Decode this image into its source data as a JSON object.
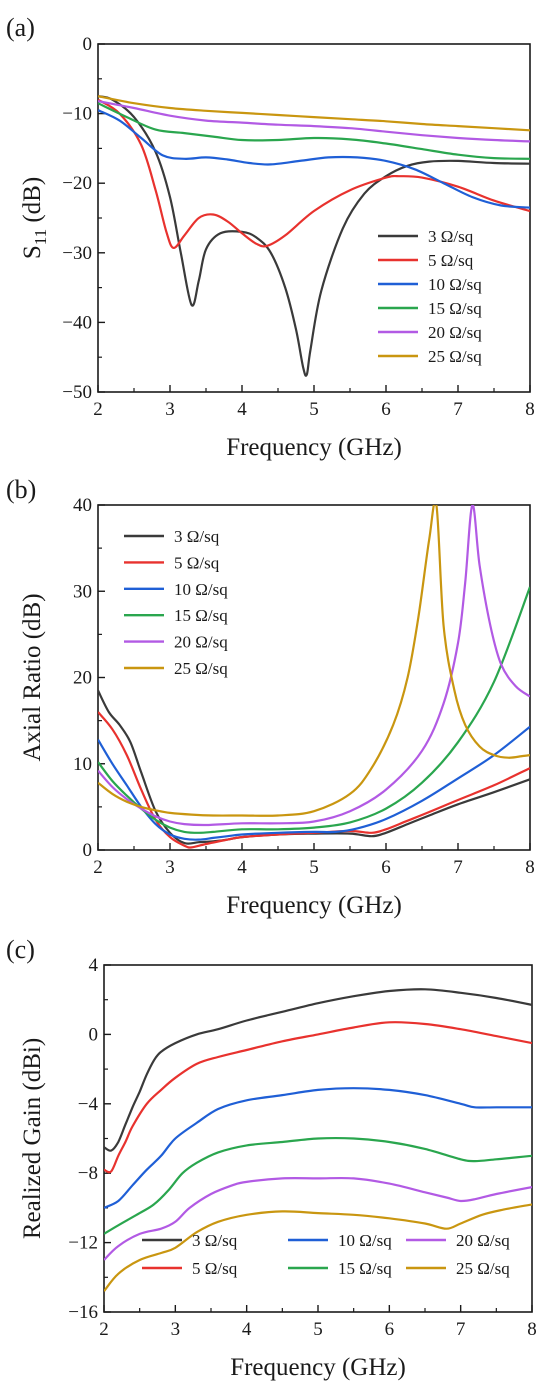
{
  "chart_data": [
    {
      "panel_label": "(a)",
      "type": "line",
      "xlabel": "Frequency (GHz)",
      "ylabel_main": "S",
      "ylabel_sub": "11",
      "ylabel_unit": " (dB)",
      "xlim": [
        2,
        8
      ],
      "ylim": [
        -50,
        0
      ],
      "xticks": [
        2,
        3,
        4,
        5,
        6,
        7,
        8
      ],
      "yticks": [
        0,
        -10,
        -20,
        -30,
        -40,
        -50
      ],
      "ytick_labels": [
        "0",
        "−10",
        "−20",
        "−30",
        "−40",
        "−50"
      ],
      "grid": false,
      "legend_position": "lower-right",
      "legend_columns": 1,
      "series": [
        {
          "name": "3 Ω/sq",
          "color": "#3a3a3a",
          "x": [
            2,
            2.2,
            2.5,
            2.8,
            3.0,
            3.15,
            3.3,
            3.4,
            3.5,
            3.7,
            4.0,
            4.2,
            4.4,
            4.6,
            4.75,
            4.85,
            4.9,
            4.95,
            5.1,
            5.4,
            5.7,
            6.0,
            6.3,
            6.6,
            7.0,
            7.5,
            8.0
          ],
          "y": [
            -7.5,
            -8,
            -10.5,
            -15.5,
            -22,
            -30,
            -37.5,
            -34,
            -29.5,
            -27.2,
            -27,
            -27.8,
            -30,
            -35,
            -41,
            -46.5,
            -47.5,
            -44,
            -35.5,
            -26.5,
            -21.5,
            -19,
            -17.5,
            -16.9,
            -16.8,
            -17.1,
            -17.2
          ]
        },
        {
          "name": "5 Ω/sq",
          "color": "#e8322e",
          "x": [
            2,
            2.3,
            2.6,
            2.8,
            2.95,
            3.05,
            3.2,
            3.4,
            3.6,
            3.8,
            4.0,
            4.2,
            4.35,
            4.6,
            5.0,
            5.5,
            6.0,
            6.2,
            6.5,
            7.0,
            7.5,
            8.0
          ],
          "y": [
            -8,
            -10,
            -14.5,
            -21,
            -27,
            -29.3,
            -27.5,
            -25,
            -24.5,
            -25.5,
            -27.2,
            -28.7,
            -29,
            -27.5,
            -24,
            -21,
            -19.2,
            -19,
            -19.2,
            -20.5,
            -22.5,
            -24
          ]
        },
        {
          "name": "10 Ω/sq",
          "color": "#1f5fd6",
          "x": [
            2,
            2.3,
            2.6,
            2.9,
            3.2,
            3.5,
            3.8,
            4.1,
            4.4,
            4.8,
            5.2,
            5.6,
            6.0,
            6.4,
            6.8,
            7.2,
            7.6,
            8.0
          ],
          "y": [
            -9.5,
            -11,
            -13.5,
            -16,
            -16.5,
            -16.3,
            -16.6,
            -17.1,
            -17.3,
            -16.8,
            -16.3,
            -16.3,
            -16.8,
            -18,
            -20,
            -22,
            -23.2,
            -23.5
          ]
        },
        {
          "name": "15 Ω/sq",
          "color": "#2aa64e",
          "x": [
            2,
            2.4,
            2.8,
            3.2,
            3.6,
            4.0,
            4.5,
            5.0,
            5.5,
            6.0,
            6.5,
            7.0,
            7.5,
            8.0
          ],
          "y": [
            -8.5,
            -10.5,
            -12.3,
            -12.8,
            -13.3,
            -13.8,
            -13.8,
            -13.5,
            -13.7,
            -14.3,
            -15.1,
            -15.9,
            -16.4,
            -16.5
          ]
        },
        {
          "name": "20 Ω/sq",
          "color": "#b25ae4",
          "x": [
            2,
            2.5,
            3.0,
            3.5,
            4.0,
            4.5,
            5.0,
            5.5,
            6.0,
            6.5,
            7.0,
            7.5,
            8.0
          ],
          "y": [
            -8.2,
            -9.2,
            -10.3,
            -11,
            -11.3,
            -11.6,
            -11.8,
            -12.1,
            -12.6,
            -13.1,
            -13.5,
            -13.8,
            -14
          ]
        },
        {
          "name": "25 Ω/sq",
          "color": "#c99610",
          "x": [
            2,
            2.5,
            3.0,
            3.5,
            4.0,
            4.5,
            5.0,
            5.5,
            6.0,
            6.5,
            7.0,
            7.5,
            8.0
          ],
          "y": [
            -7.5,
            -8.5,
            -9.2,
            -9.6,
            -9.9,
            -10.2,
            -10.5,
            -10.8,
            -11.1,
            -11.5,
            -11.8,
            -12.1,
            -12.4
          ]
        }
      ]
    },
    {
      "panel_label": "(b)",
      "type": "line",
      "xlabel": "Frequency (GHz)",
      "ylabel_main": "Axial Ratio (dB)",
      "ylabel_sub": "",
      "ylabel_unit": "",
      "xlim": [
        2,
        8
      ],
      "ylim": [
        0,
        40
      ],
      "xticks": [
        2,
        3,
        4,
        5,
        6,
        7,
        8
      ],
      "yticks": [
        0,
        10,
        20,
        30,
        40
      ],
      "ytick_labels": [
        "0",
        "10",
        "20",
        "30",
        "40"
      ],
      "grid": false,
      "legend_position": "upper-left",
      "legend_columns": 1,
      "series": [
        {
          "name": "3 Ω/sq",
          "color": "#3a3a3a",
          "x": [
            2,
            2.15,
            2.3,
            2.45,
            2.6,
            2.8,
            3.0,
            3.2,
            3.4,
            3.6,
            3.8,
            4.0,
            4.5,
            5.0,
            5.5,
            5.8,
            6.0,
            6.3,
            6.6,
            7.0,
            7.5,
            8.0
          ],
          "y": [
            18.5,
            16,
            14.5,
            12.5,
            9,
            4.5,
            2,
            0.8,
            0.9,
            1,
            1.2,
            1.5,
            1.8,
            1.9,
            1.9,
            1.6,
            2,
            3,
            4,
            5.3,
            6.7,
            8.2
          ]
        },
        {
          "name": "5 Ω/sq",
          "color": "#e8322e",
          "x": [
            2,
            2.2,
            2.4,
            2.6,
            2.8,
            3.0,
            3.2,
            3.3,
            3.5,
            3.8,
            4.0,
            4.5,
            5.0,
            5.5,
            5.8,
            6.0,
            6.3,
            6.6,
            7.0,
            7.5,
            8.0
          ],
          "y": [
            16,
            14,
            11,
            7,
            3.5,
            1.5,
            0.5,
            0.3,
            0.7,
            1.2,
            1.5,
            1.8,
            2,
            2.2,
            2,
            2.4,
            3.4,
            4.4,
            5.8,
            7.5,
            9.5
          ]
        },
        {
          "name": "10 Ω/sq",
          "color": "#1f5fd6",
          "x": [
            2,
            2.2,
            2.4,
            2.6,
            2.8,
            3.0,
            3.2,
            3.4,
            3.6,
            3.8,
            4.0,
            4.5,
            5.0,
            5.3,
            5.6,
            6.0,
            6.5,
            7.0,
            7.5,
            8.0
          ],
          "y": [
            12.8,
            10,
            7.5,
            5,
            3,
            1.8,
            1.3,
            1.2,
            1.4,
            1.6,
            1.8,
            2,
            2.1,
            2.1,
            2.5,
            3.6,
            5.7,
            8.3,
            11,
            14.3
          ]
        },
        {
          "name": "15 Ω/sq",
          "color": "#2aa64e",
          "x": [
            2,
            2.2,
            2.4,
            2.6,
            2.8,
            3.0,
            3.2,
            3.4,
            3.6,
            4.0,
            4.5,
            5.0,
            5.5,
            6.0,
            6.5,
            7.0,
            7.5,
            8.0
          ],
          "y": [
            10.2,
            8,
            6.3,
            4.8,
            3.5,
            2.6,
            2.1,
            2,
            2.1,
            2.4,
            2.4,
            2.6,
            3.2,
            4.8,
            7.8,
            12.5,
            19.5,
            30.5
          ]
        },
        {
          "name": "20 Ω/sq",
          "color": "#b25ae4",
          "x": [
            2,
            2.2,
            2.4,
            2.6,
            2.8,
            3.0,
            3.2,
            3.5,
            4.0,
            4.5,
            5.0,
            5.5,
            6.0,
            6.5,
            6.8,
            7.0,
            7.1,
            7.2,
            7.3,
            7.45,
            7.6,
            7.8,
            8.0
          ],
          "y": [
            9.2,
            7.3,
            5.9,
            4.8,
            3.9,
            3.3,
            3,
            2.9,
            3.1,
            3.1,
            3.3,
            4.5,
            7,
            11.5,
            17,
            24,
            31,
            40,
            33,
            26,
            21.5,
            19,
            17.8
          ]
        },
        {
          "name": "25 Ω/sq",
          "color": "#c99610",
          "x": [
            2,
            2.2,
            2.4,
            2.6,
            2.8,
            3.0,
            3.3,
            3.6,
            4.0,
            4.5,
            5.0,
            5.5,
            5.8,
            6.1,
            6.3,
            6.45,
            6.6,
            6.7,
            6.8,
            6.95,
            7.1,
            7.3,
            7.5,
            7.7,
            7.9,
            8.0
          ],
          "y": [
            7.8,
            6.5,
            5.6,
            5,
            4.6,
            4.3,
            4.1,
            4,
            4,
            4,
            4.5,
            6.5,
            9.5,
            14.5,
            20,
            27,
            36,
            40,
            26,
            18.5,
            14.5,
            12,
            11,
            10.7,
            10.9,
            11
          ]
        }
      ]
    },
    {
      "panel_label": "(c)",
      "type": "line",
      "xlabel": "Frequency (GHz)",
      "ylabel_main": "Realized Gain (dBi)",
      "ylabel_sub": "",
      "ylabel_unit": "",
      "xlim": [
        2,
        8
      ],
      "ylim": [
        -16,
        4
      ],
      "xticks": [
        2,
        3,
        4,
        5,
        6,
        7,
        8
      ],
      "yticks": [
        4,
        0,
        -4,
        -8,
        -12,
        -16
      ],
      "ytick_labels": [
        "4",
        "0",
        "−4",
        "−8",
        "−12",
        "−16"
      ],
      "grid": false,
      "legend_position": "bottom",
      "legend_columns": 3,
      "series": [
        {
          "name": "3 Ω/sq",
          "color": "#3a3a3a",
          "x": [
            2,
            2.1,
            2.2,
            2.3,
            2.4,
            2.5,
            2.6,
            2.7,
            2.8,
            3.0,
            3.3,
            3.6,
            4.0,
            4.5,
            5.0,
            5.5,
            6.0,
            6.5,
            7.0,
            7.5,
            8.0
          ],
          "y": [
            -6.5,
            -6.7,
            -6.2,
            -5.2,
            -4.2,
            -3.3,
            -2.3,
            -1.5,
            -1.0,
            -0.5,
            0,
            0.3,
            0.8,
            1.3,
            1.8,
            2.2,
            2.5,
            2.6,
            2.4,
            2.1,
            1.7
          ]
        },
        {
          "name": "5 Ω/sq",
          "color": "#e8322e",
          "x": [
            2,
            2.1,
            2.2,
            2.3,
            2.4,
            2.6,
            2.8,
            3.0,
            3.3,
            3.6,
            4.0,
            4.5,
            5.0,
            5.5,
            6.0,
            6.5,
            7.0,
            7.5,
            8.0
          ],
          "y": [
            -7.8,
            -7.9,
            -7.0,
            -6.2,
            -5.3,
            -4,
            -3.2,
            -2.5,
            -1.7,
            -1.3,
            -0.9,
            -0.4,
            0,
            0.4,
            0.7,
            0.6,
            0.3,
            -0.1,
            -0.5
          ]
        },
        {
          "name": "10 Ω/sq",
          "color": "#1f5fd6",
          "x": [
            2,
            2.2,
            2.4,
            2.6,
            2.8,
            3.0,
            3.3,
            3.6,
            4.0,
            4.5,
            5.0,
            5.5,
            6.0,
            6.5,
            7.0,
            7.2,
            7.5,
            8.0
          ],
          "y": [
            -10,
            -9.6,
            -8.7,
            -7.8,
            -7,
            -6,
            -5.1,
            -4.3,
            -3.8,
            -3.5,
            -3.2,
            -3.1,
            -3.2,
            -3.5,
            -4,
            -4.2,
            -4.2,
            -4.2
          ]
        },
        {
          "name": "15 Ω/sq",
          "color": "#2aa64e",
          "x": [
            2,
            2.2,
            2.5,
            2.7,
            2.9,
            3.1,
            3.3,
            3.6,
            4.0,
            4.5,
            5.0,
            5.5,
            6.0,
            6.5,
            7.0,
            7.2,
            7.5,
            8.0
          ],
          "y": [
            -11.5,
            -11,
            -10.3,
            -9.8,
            -9,
            -8,
            -7.4,
            -6.8,
            -6.4,
            -6.2,
            -6,
            -6,
            -6.2,
            -6.6,
            -7.2,
            -7.3,
            -7.2,
            -7
          ]
        },
        {
          "name": "20 Ω/sq",
          "color": "#b25ae4",
          "x": [
            2,
            2.2,
            2.5,
            2.8,
            3.0,
            3.2,
            3.5,
            3.8,
            4.0,
            4.5,
            5.0,
            5.5,
            6.0,
            6.5,
            6.8,
            7.0,
            7.2,
            7.5,
            8.0
          ],
          "y": [
            -13,
            -12.2,
            -11.5,
            -11.2,
            -10.8,
            -10,
            -9.2,
            -8.7,
            -8.5,
            -8.3,
            -8.3,
            -8.3,
            -8.6,
            -9.1,
            -9.4,
            -9.6,
            -9.5,
            -9.2,
            -8.8
          ]
        },
        {
          "name": "25 Ω/sq",
          "color": "#c99610",
          "x": [
            2,
            2.2,
            2.5,
            2.8,
            3.0,
            3.3,
            3.6,
            4.0,
            4.5,
            5.0,
            5.5,
            6.0,
            6.5,
            6.8,
            7.0,
            7.3,
            7.6,
            8.0
          ],
          "y": [
            -14.8,
            -13.8,
            -13,
            -12.6,
            -12.3,
            -11.4,
            -10.8,
            -10.4,
            -10.2,
            -10.3,
            -10.4,
            -10.6,
            -10.9,
            -11.2,
            -10.9,
            -10.4,
            -10.1,
            -9.8
          ]
        }
      ]
    }
  ]
}
